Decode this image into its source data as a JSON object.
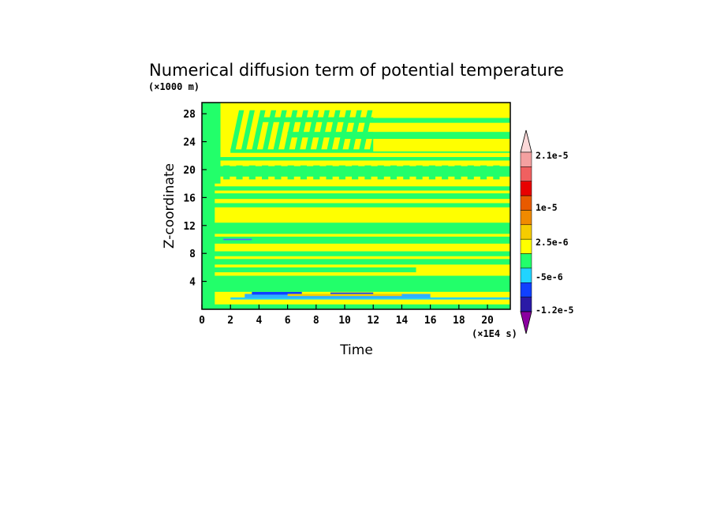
{
  "chart_data": {
    "type": "heatmap",
    "title": "Numerical diffusion term of potential temperature",
    "xlabel": "Time",
    "ylabel": "Z-coordinate",
    "x_unit": "(×1E4 s)",
    "y_unit": "(×1000 m)",
    "xlim": [
      0,
      21.6
    ],
    "ylim": [
      0,
      29.6
    ],
    "x_ticks": [
      "0",
      "2",
      "4",
      "6",
      "8",
      "10",
      "12",
      "14",
      "16",
      "18",
      "20"
    ],
    "y_ticks": [
      "4",
      "8",
      "12",
      "16",
      "20",
      "24",
      "28"
    ],
    "colorbar": {
      "colors": [
        "#8b00a0",
        "#2a1aa6",
        "#1040ff",
        "#21d4ff",
        "#22ff6a",
        "#ffff00",
        "#f5cc00",
        "#f08a00",
        "#e85a00",
        "#e80000",
        "#f06060",
        "#f4a0a0",
        "#fcd8d8"
      ],
      "tick_labels": [
        "-1.2e-5",
        "-5e-6",
        "2.5e-6",
        "1e-5",
        "2.1e-5"
      ]
    },
    "bands": [
      {
        "z": [
          0,
          0.7
        ],
        "value": "green"
      },
      {
        "z": [
          0.7,
          1.5
        ],
        "value": "yellow"
      },
      {
        "z": [
          1.5,
          2.2
        ],
        "value": "cyan-blue"
      },
      {
        "z": [
          2.2,
          4.8
        ],
        "value": "green"
      },
      {
        "z": [
          4.8,
          8.5
        ],
        "value": "green/yellow mix"
      },
      {
        "z": [
          8.5,
          9.3
        ],
        "value": "yellow"
      },
      {
        "z": [
          9.3,
          10.5
        ],
        "value": "green"
      },
      {
        "z": [
          10.5,
          12.5
        ],
        "value": "green"
      },
      {
        "z": [
          12.5,
          14.5
        ],
        "value": "yellow"
      },
      {
        "z": [
          14.5,
          18.5
        ],
        "value": "green/yellow stripes"
      },
      {
        "z": [
          18.5,
          22.5
        ],
        "value": "green/yellow stripes"
      },
      {
        "z": [
          22.5,
          29.6
        ],
        "value": "yellow with green diagonal streaks"
      }
    ]
  }
}
